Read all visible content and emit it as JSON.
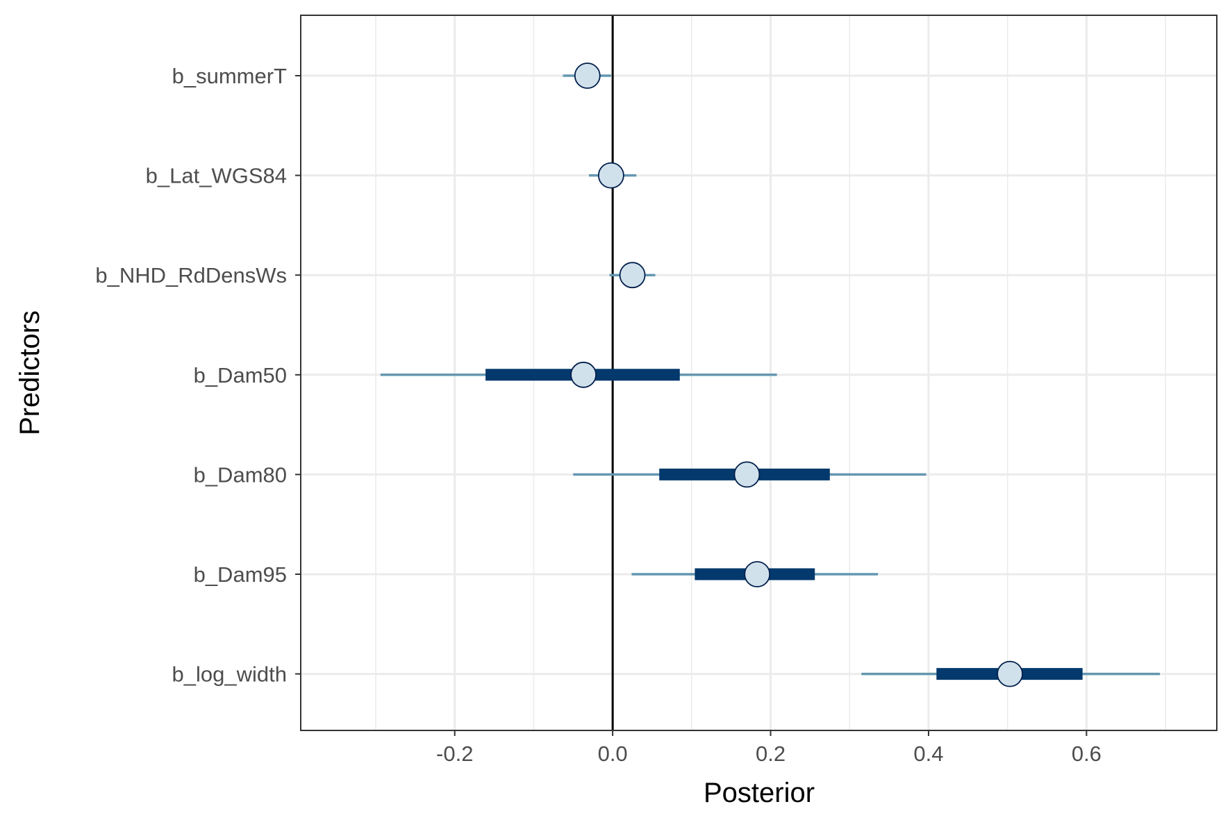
{
  "chart_data": {
    "type": "interval",
    "xlabel": "Posterior",
    "ylabel": "Predictors",
    "xlim": [
      -0.395,
      0.765
    ],
    "x_ticks": [
      -0.2,
      0.0,
      0.2,
      0.4,
      0.6
    ],
    "x_tick_labels": [
      "-0.2",
      "0.0",
      "0.2",
      "0.4",
      "0.6"
    ],
    "reference_line": 0,
    "grid": true,
    "predictors": [
      {
        "name": "b_summerT",
        "median": -0.032,
        "inner": [
          -0.04,
          -0.024
        ],
        "outer": [
          -0.063,
          -0.002
        ]
      },
      {
        "name": "b_Lat_WGS84",
        "median": -0.002,
        "inner": [
          -0.012,
          0.008
        ],
        "outer": [
          -0.03,
          0.03
        ]
      },
      {
        "name": "b_NHD_RdDensWs",
        "median": 0.025,
        "inner": [
          0.015,
          0.035
        ],
        "outer": [
          -0.004,
          0.054
        ]
      },
      {
        "name": "b_Dam50",
        "median": -0.037,
        "inner": [
          -0.161,
          0.085
        ],
        "outer": [
          -0.294,
          0.208
        ]
      },
      {
        "name": "b_Dam80",
        "median": 0.17,
        "inner": [
          0.059,
          0.275
        ],
        "outer": [
          -0.05,
          0.397
        ]
      },
      {
        "name": "b_Dam95",
        "median": 0.183,
        "inner": [
          0.104,
          0.256
        ],
        "outer": [
          0.024,
          0.336
        ]
      },
      {
        "name": "b_log_width",
        "median": 0.503,
        "inner": [
          0.41,
          0.595
        ],
        "outer": [
          0.315,
          0.693
        ]
      }
    ]
  },
  "colors": {
    "outer_line": "#6497b1",
    "inner_line": "#03396c",
    "point_fill": "#d1e1ec",
    "point_stroke": "#011f4b",
    "reference_line": "#000000",
    "grid": "#ebebeb",
    "panel_border": "#333333"
  }
}
